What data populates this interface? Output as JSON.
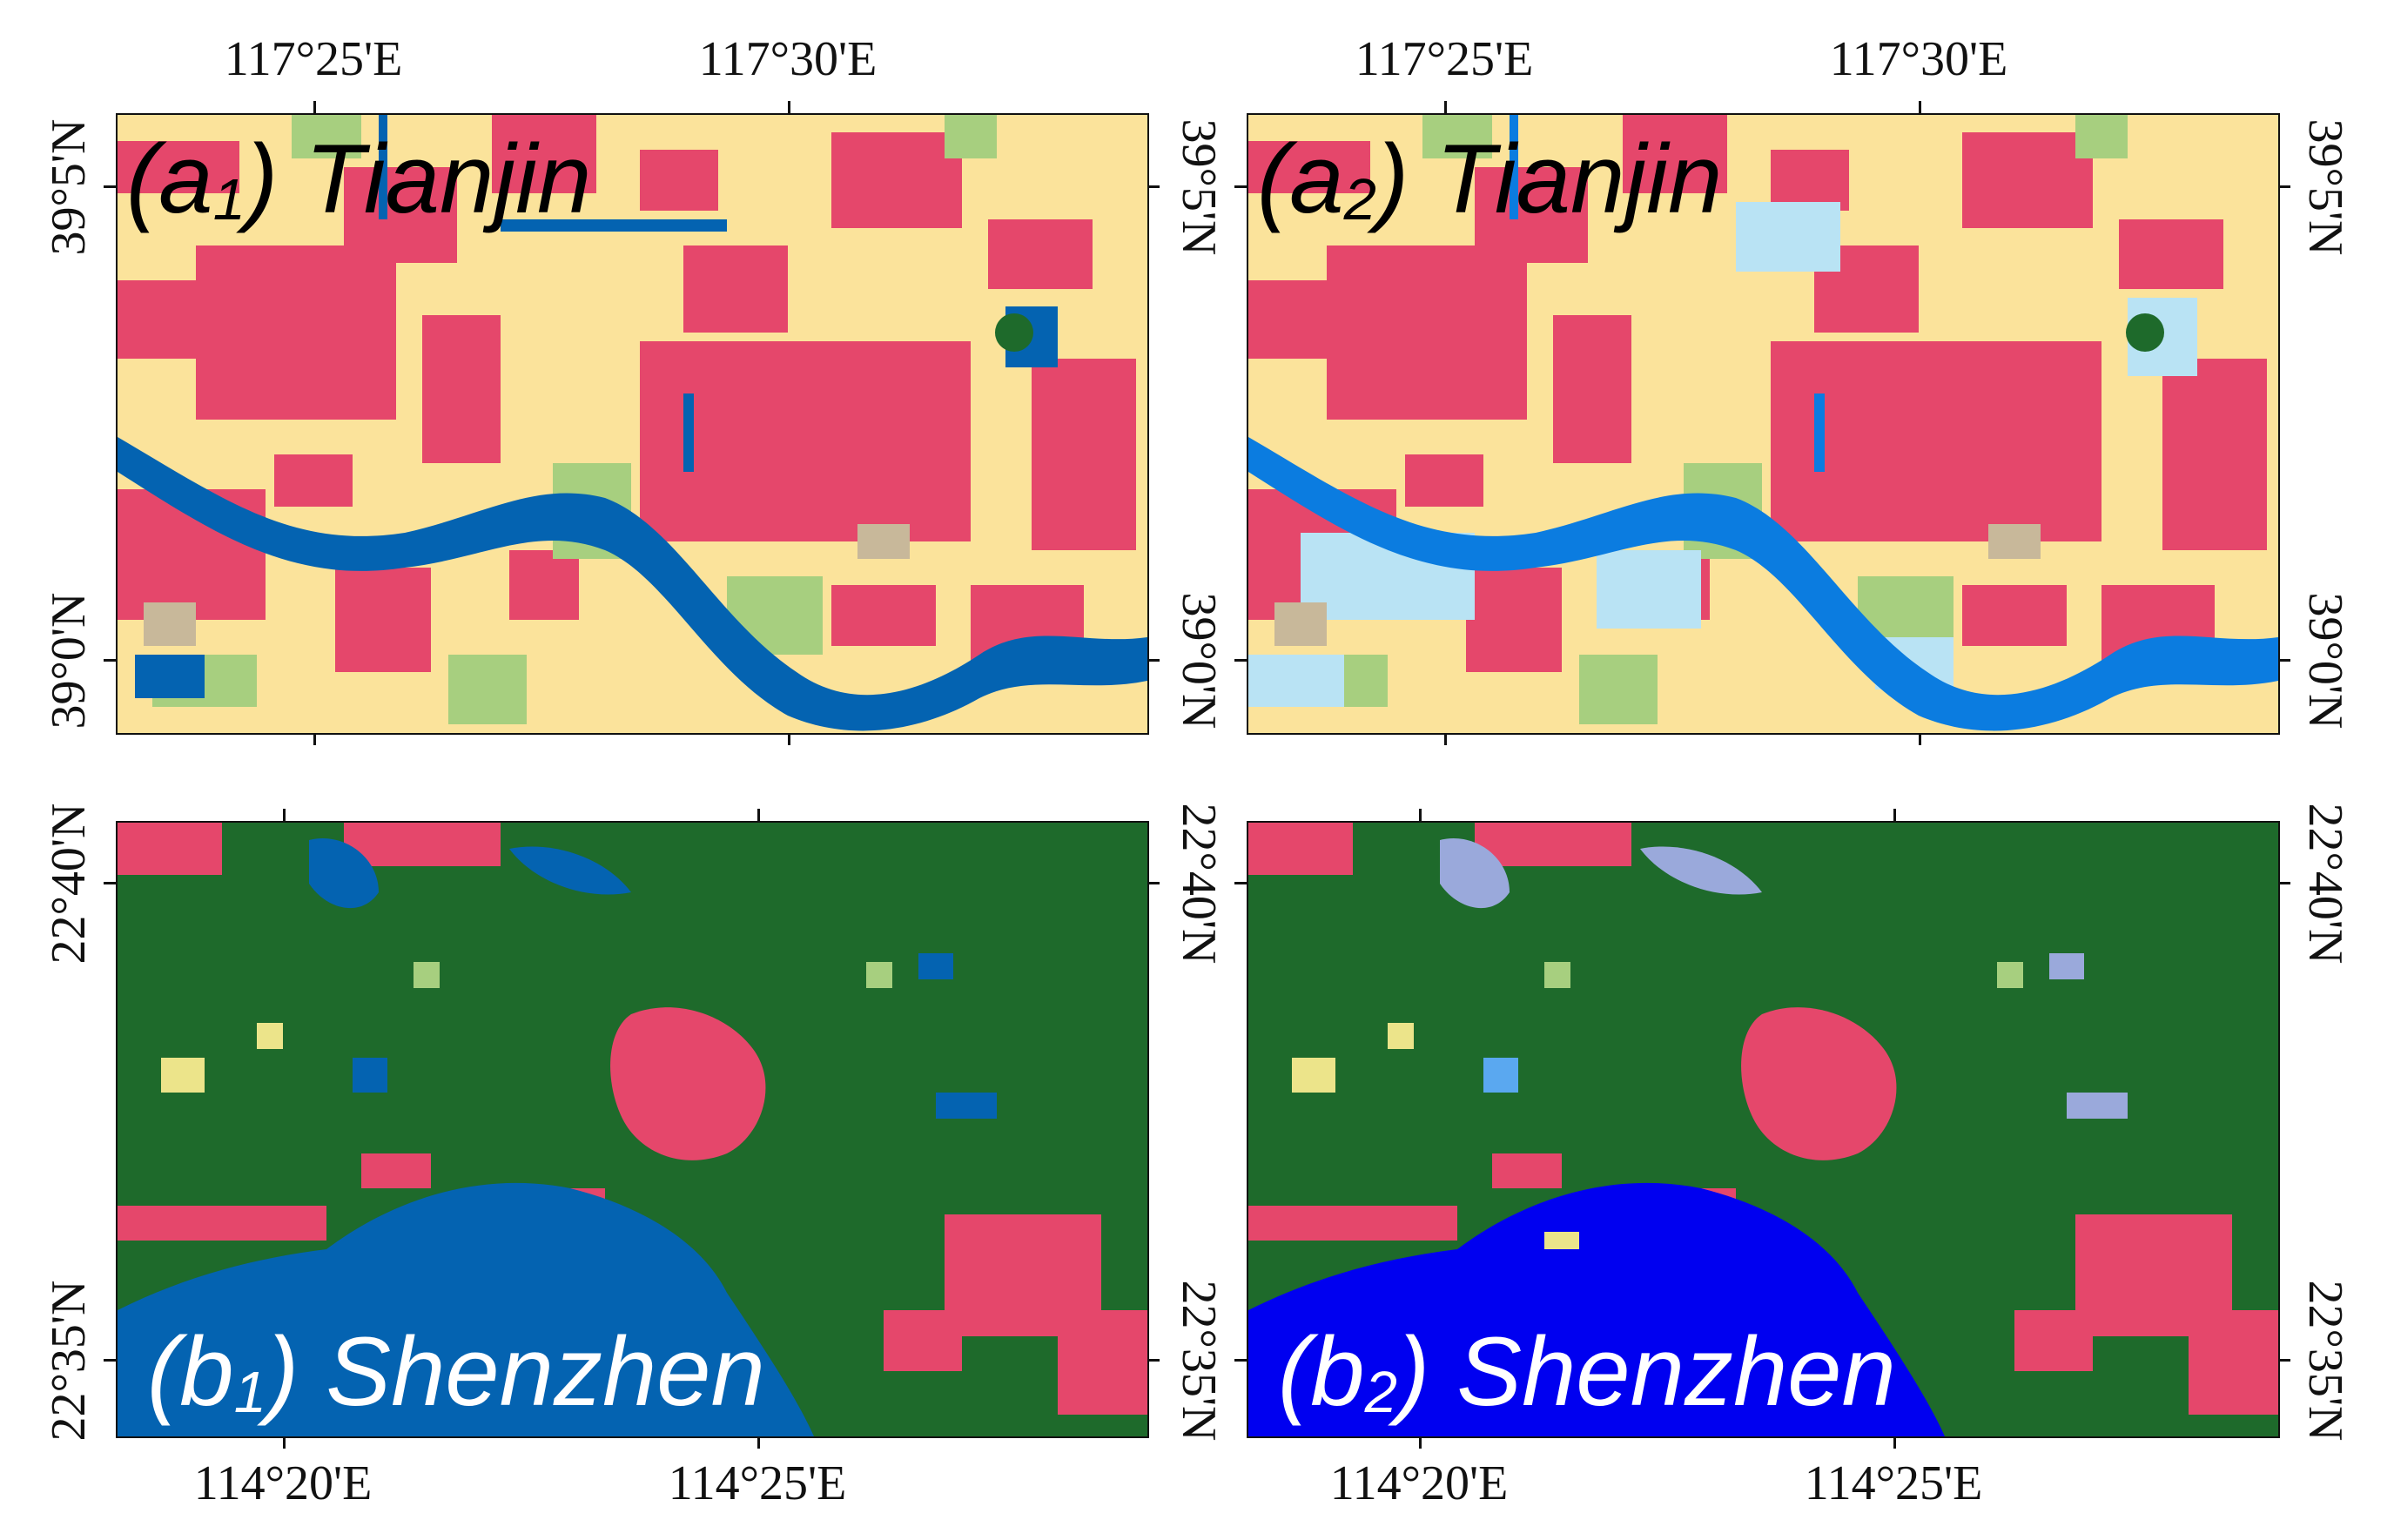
{
  "colors": {
    "impervious": "#e5476b",
    "cropland": "#fbe39b",
    "forest": "#1e6a2b",
    "grassland": "#a7cf7f",
    "bare": "#c8b89a",
    "water_a1": "#0463b1",
    "water_a2": "#0b7ce0",
    "wetland_a2": "#b9e3f4",
    "water_b1": "#0463b1",
    "water_b2": "#0000f0",
    "wetland_b2": "#9aa9db",
    "shrub": "#ece48a"
  },
  "panels": [
    {
      "id": "a1",
      "label_prefix": "(a",
      "label_sub": "1",
      "label_rest": ") Tianjin",
      "label_color": "#000000",
      "lon_labels": [
        "117°25'E",
        "117°30'E"
      ],
      "lat_labels": [
        "39°5'N",
        "39°0'N"
      ]
    },
    {
      "id": "a2",
      "label_prefix": "(a",
      "label_sub": "2",
      "label_rest": ") Tianjin",
      "label_color": "#000000",
      "lon_labels": [
        "117°25'E",
        "117°30'E"
      ],
      "lat_labels": [
        "39°5'N",
        "39°0'N"
      ]
    },
    {
      "id": "b1",
      "label_prefix": "(b",
      "label_sub": "1",
      "label_rest": ") Shenzhen",
      "label_color": "#ffffff",
      "lon_labels": [
        "114°20'E",
        "114°25'E"
      ],
      "lat_labels": [
        "22°40'N",
        "22°35'N"
      ]
    },
    {
      "id": "b2",
      "label_prefix": "(b",
      "label_sub": "2",
      "label_rest": ") Shenzhen",
      "label_color": "#ffffff",
      "lon_labels": [
        "114°20'E",
        "114°25'E"
      ],
      "lat_labels": [
        "22°40'N",
        "22°35'N"
      ]
    }
  ]
}
